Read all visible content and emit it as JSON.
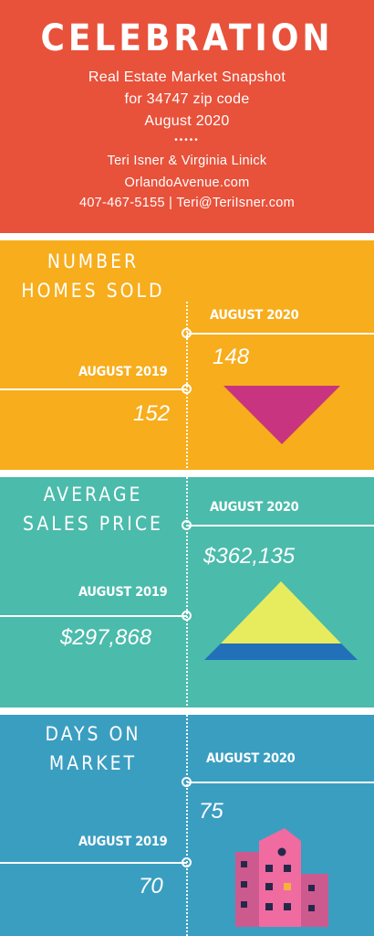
{
  "header": {
    "title": "CELEBRATION",
    "subtitle_line1": "Real Estate Market Snapshot",
    "subtitle_line2": "for 34747 zip code",
    "subtitle_line3": "August 2020",
    "dots": "•••••",
    "contact_line1": "Teri Isner & Virginia Linick",
    "contact_line2": "OrlandoAvenue.com",
    "contact_line3": "407-467-5155 | Teri@TeriIsner.com",
    "bg_color": "#e8513a"
  },
  "sections": [
    {
      "title_line1": "NUMBER",
      "title_line2": "HOMES SOLD",
      "current_label": "AUGUST 2020",
      "current_value": "148",
      "previous_label": "AUGUST 2019",
      "previous_value": "152",
      "icon": "down-triangle-icon",
      "bg_color": "#f7ad1c"
    },
    {
      "title_line1": "AVERAGE",
      "title_line2": "SALES PRICE",
      "current_label": "AUGUST 2020",
      "current_value": "$362,135",
      "previous_label": "AUGUST 2019",
      "previous_value": "$297,868",
      "icon": "up-triangle-icon",
      "bg_color": "#4bbbab"
    },
    {
      "title_line1": "DAYS ON",
      "title_line2": "MARKET",
      "current_label": "AUGUST 2020",
      "current_value": "75",
      "previous_label": "AUGUST 2019",
      "previous_value": "70",
      "icon": "building-icon",
      "bg_color": "#3a9ec1"
    }
  ]
}
